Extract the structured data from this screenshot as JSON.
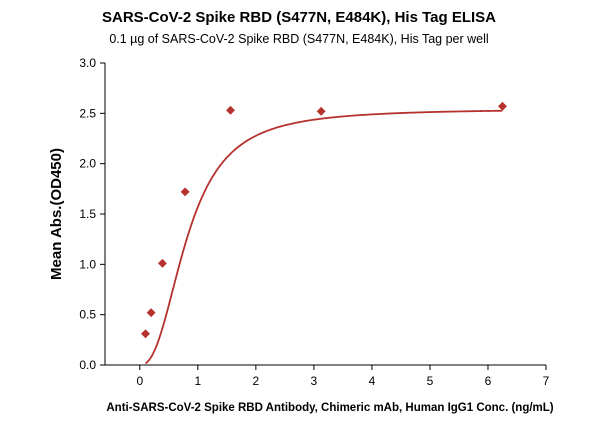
{
  "chart_data": {
    "type": "scatter",
    "title": "SARS-CoV-2 Spike RBD (S477N, E484K), His Tag ELISA",
    "subtitle": "0.1 µg of SARS-CoV-2 Spike RBD (S477N, E484K), His Tag per well",
    "xlabel": "Anti-SARS-CoV-2 Spike RBD Antibody, Chimeric mAb, Human IgG1 Conc. (ng/mL)",
    "ylabel": "Mean Abs.(OD450)",
    "xlim": [
      -0.6,
      7
    ],
    "ylim": [
      0,
      3.0
    ],
    "x_ticks": [
      "0",
      "1",
      "2",
      "3",
      "4",
      "5",
      "6",
      "7"
    ],
    "y_ticks": [
      "0.0",
      "0.5",
      "1.0",
      "1.5",
      "2.0",
      "2.5",
      "3.0"
    ],
    "grid": false,
    "legend": "none",
    "series": [
      {
        "marker": "diamond",
        "color": "#b5322e",
        "fit_curve": true,
        "x": [
          0.098,
          0.195,
          0.39,
          0.781,
          1.563,
          3.125,
          6.25
        ],
        "y": [
          0.31,
          0.52,
          1.01,
          1.72,
          2.53,
          2.52,
          2.57
        ]
      }
    ]
  }
}
